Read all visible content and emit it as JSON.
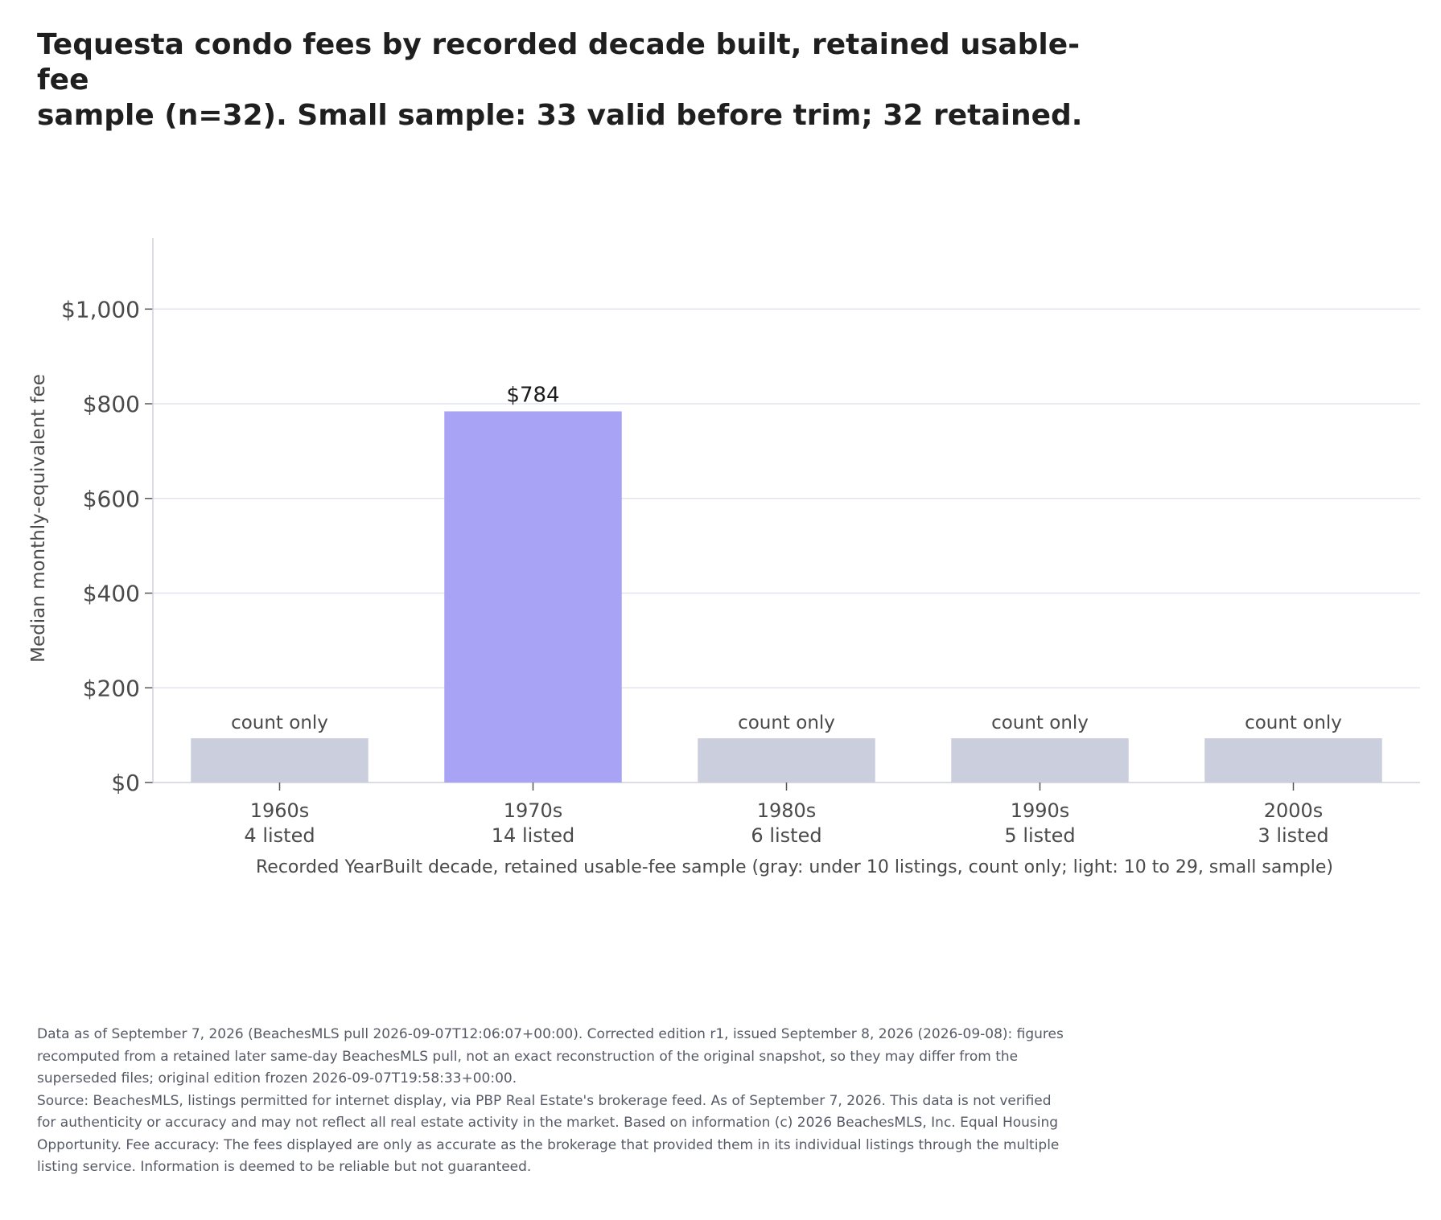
{
  "title_lines": [
    "Tequesta condo fees by recorded decade built, retained usable-fee",
    "sample (n=32). Small sample: 33 valid before trim; 32 retained."
  ],
  "chart_data": {
    "type": "bar",
    "categories": [
      "1960s",
      "1970s",
      "1980s",
      "1990s",
      "2000s"
    ],
    "listing_counts": [
      "4 listed",
      "14 listed",
      "6 listed",
      "5 listed",
      "3 listed"
    ],
    "values": [
      null,
      784,
      null,
      null,
      null
    ],
    "bar_labels": [
      "count only",
      "$784",
      "count only",
      "count only",
      "count only"
    ],
    "count_only": [
      true,
      false,
      true,
      true,
      true
    ],
    "ylabel": "Median monthly-equivalent fee",
    "xlabel": "Recorded YearBuilt decade, retained usable-fee sample (gray: under 10 listings, count only; light: 10 to 29, small sample)",
    "ylim": [
      0,
      1150
    ],
    "yticks": [
      0,
      200,
      400,
      600,
      800,
      1000
    ],
    "ytick_labels": [
      "$0",
      "$200",
      "$400",
      "$600",
      "$800",
      "$1,000"
    ],
    "grid": true,
    "colors": {
      "value_bar": "#a8a3f4",
      "count_only_bar": "#cbcedd",
      "grid": "#e3e4ee",
      "axis": "#d0d2dc"
    }
  },
  "footnote_lines": [
    "Data as of September 7, 2026 (BeachesMLS pull 2026-09-07T12:06:07+00:00). Corrected edition r1, issued September 8, 2026 (2026-09-08): figures",
    "recomputed from a retained later same-day BeachesMLS pull, not an exact reconstruction of the original snapshot, so they may differ from the",
    "superseded files; original edition frozen 2026-09-07T19:58:33+00:00.",
    "Source: BeachesMLS, listings permitted for internet display, via PBP Real Estate's brokerage feed. As of September 7, 2026. This data is not verified",
    "for authenticity or accuracy and may not reflect all real estate activity in the market. Based on information (c) 2026 BeachesMLS, Inc. Equal Housing",
    "Opportunity. Fee accuracy: The fees displayed are only as accurate as the brokerage that provided them in its individual listings through the multiple",
    "listing service. Information is deemed to be reliable but not guaranteed."
  ]
}
